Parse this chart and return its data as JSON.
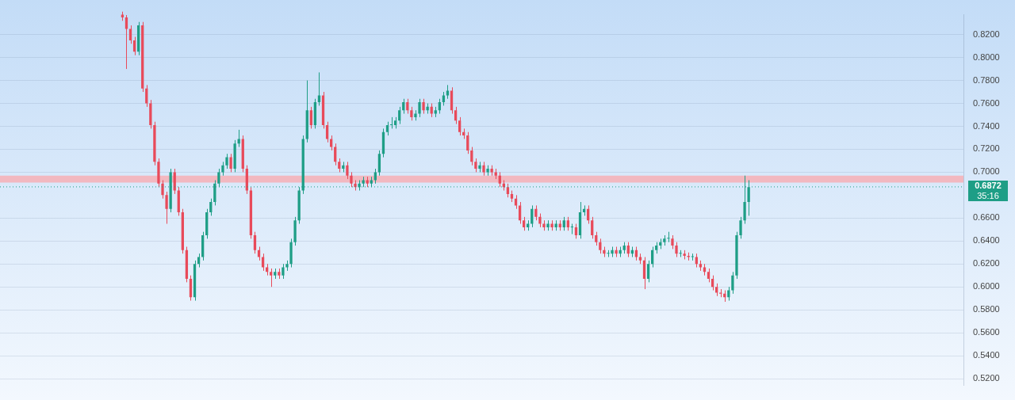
{
  "chart_data": {
    "type": "candlestick",
    "categories": [
      null,
      null,
      null,
      null,
      null,
      null,
      null,
      null,
      null,
      null,
      null,
      null,
      null,
      null,
      null,
      null,
      null,
      null,
      null,
      null,
      null,
      null,
      null,
      null,
      null,
      null,
      null,
      null,
      null,
      null,
      null,
      null,
      null,
      null,
      null,
      null,
      null,
      null,
      null,
      null,
      null,
      null,
      null,
      null,
      null,
      null,
      null,
      null,
      null,
      null,
      null,
      null,
      null,
      null,
      null,
      null,
      null,
      null,
      null,
      null,
      null,
      null,
      null,
      null,
      null,
      null,
      null,
      null,
      null,
      null,
      null,
      null,
      null,
      null,
      null,
      null,
      null,
      null,
      null,
      null,
      null,
      null,
      null,
      null,
      null,
      null,
      null,
      null,
      null,
      null,
      null,
      null,
      null,
      null,
      null,
      null,
      null,
      null,
      null,
      null,
      null,
      null,
      null,
      null,
      null,
      null,
      null,
      null,
      null,
      null,
      null,
      null,
      null,
      null,
      null,
      null,
      null,
      null,
      null,
      null,
      null,
      null,
      null,
      null,
      null,
      null,
      null,
      null,
      null,
      null,
      null,
      null,
      null,
      null,
      null,
      null,
      null,
      null,
      null,
      null,
      null,
      null,
      null,
      null,
      null,
      null,
      null,
      null,
      null,
      null,
      null,
      null,
      null,
      null,
      null,
      null,
      null,
      null,
      null,
      null,
      null,
      null,
      null,
      null,
      null,
      null,
      null,
      null,
      null,
      null,
      null,
      null,
      null,
      null,
      null,
      null,
      null,
      null,
      null,
      null,
      null,
      null,
      null,
      null,
      null,
      null,
      null,
      null,
      null,
      null,
      null,
      null,
      null,
      null,
      null,
      null,
      null,
      null,
      null,
      null,
      null,
      null,
      null,
      null,
      null,
      null,
      null,
      null,
      null,
      null,
      null,
      null,
      null,
      null,
      null,
      null,
      null,
      null,
      null,
      null,
      null,
      null,
      null,
      null,
      null,
      null,
      null,
      null,
      null,
      null,
      null,
      null,
      null,
      null,
      null,
      null,
      null,
      null,
      null,
      null
    ],
    "ohlc": [
      null,
      null,
      null,
      null,
      null,
      null,
      null,
      null,
      null,
      null,
      null,
      null,
      null,
      null,
      null,
      null,
      null,
      null,
      null,
      null,
      null,
      null,
      null,
      null,
      null,
      null,
      null,
      null,
      null,
      null,
      [
        0.838,
        0.84,
        0.832,
        0.835
      ],
      [
        0.835,
        0.837,
        0.79,
        0.825
      ],
      [
        0.825,
        0.828,
        0.812,
        0.815
      ],
      [
        0.815,
        0.818,
        0.802,
        0.805
      ],
      [
        0.805,
        0.831,
        0.802,
        0.828
      ],
      [
        0.828,
        0.831,
        0.77,
        0.773
      ],
      [
        0.773,
        0.776,
        0.757,
        0.76
      ],
      [
        0.76,
        0.763,
        0.738,
        0.741
      ],
      [
        0.741,
        0.744,
        0.706,
        0.709
      ],
      [
        0.709,
        0.712,
        0.687,
        0.69
      ],
      [
        0.69,
        0.693,
        0.677,
        0.68
      ],
      [
        0.68,
        0.683,
        0.655,
        0.668
      ],
      [
        0.668,
        0.703,
        0.665,
        0.7
      ],
      [
        0.7,
        0.703,
        0.681,
        0.684
      ],
      [
        0.684,
        0.687,
        0.662,
        0.665
      ],
      [
        0.665,
        0.668,
        0.629,
        0.632
      ],
      [
        0.632,
        0.635,
        0.604,
        0.607
      ],
      [
        0.607,
        0.61,
        0.588,
        0.591
      ],
      [
        0.591,
        0.623,
        0.588,
        0.62
      ],
      [
        0.62,
        0.629,
        0.617,
        0.626
      ],
      [
        0.626,
        0.648,
        0.623,
        0.645
      ],
      [
        0.645,
        0.668,
        0.642,
        0.665
      ],
      [
        0.665,
        0.677,
        0.662,
        0.674
      ],
      [
        0.674,
        0.693,
        0.671,
        0.69
      ],
      [
        0.69,
        0.703,
        0.687,
        0.7
      ],
      [
        0.7,
        0.709,
        0.697,
        0.706
      ],
      [
        0.706,
        0.716,
        0.703,
        0.713
      ],
      [
        0.713,
        0.716,
        0.7,
        0.703
      ],
      [
        0.703,
        0.728,
        0.7,
        0.725
      ],
      [
        0.725,
        0.737,
        0.722,
        0.729
      ],
      [
        0.729,
        0.732,
        0.7,
        0.703
      ],
      [
        0.703,
        0.706,
        0.681,
        0.684
      ],
      [
        0.684,
        0.687,
        0.642,
        0.645
      ],
      [
        0.645,
        0.648,
        0.629,
        0.632
      ],
      [
        0.632,
        0.635,
        0.623,
        0.626
      ],
      [
        0.626,
        0.629,
        0.614,
        0.617
      ],
      [
        0.617,
        0.62,
        0.61,
        0.613
      ],
      [
        0.613,
        0.616,
        0.6,
        0.61
      ],
      [
        0.61,
        0.616,
        0.607,
        0.613
      ],
      [
        0.613,
        0.616,
        0.607,
        0.61
      ],
      [
        0.61,
        0.62,
        0.607,
        0.617
      ],
      [
        0.617,
        0.623,
        0.614,
        0.62
      ],
      [
        0.62,
        0.642,
        0.617,
        0.639
      ],
      [
        0.639,
        0.661,
        0.636,
        0.658
      ],
      [
        0.658,
        0.687,
        0.655,
        0.684
      ],
      [
        0.684,
        0.732,
        0.681,
        0.729
      ],
      [
        0.729,
        0.78,
        0.726,
        0.754
      ],
      [
        0.754,
        0.757,
        0.738,
        0.741
      ],
      [
        0.741,
        0.764,
        0.738,
        0.761
      ],
      [
        0.761,
        0.787,
        0.758,
        0.767
      ],
      [
        0.767,
        0.77,
        0.738,
        0.741
      ],
      [
        0.741,
        0.744,
        0.726,
        0.729
      ],
      [
        0.729,
        0.732,
        0.719,
        0.722
      ],
      [
        0.722,
        0.725,
        0.706,
        0.709
      ],
      [
        0.709,
        0.712,
        0.7,
        0.703
      ],
      [
        0.703,
        0.709,
        0.7,
        0.706
      ],
      [
        0.706,
        0.709,
        0.694,
        0.697
      ],
      [
        0.697,
        0.7,
        0.687,
        0.69
      ],
      [
        0.69,
        0.693,
        0.684,
        0.687
      ],
      [
        0.687,
        0.693,
        0.684,
        0.69
      ],
      [
        0.69,
        0.696,
        0.687,
        0.693
      ],
      [
        0.693,
        0.696,
        0.687,
        0.69
      ],
      [
        0.69,
        0.696,
        0.687,
        0.693
      ],
      [
        0.693,
        0.703,
        0.69,
        0.7
      ],
      [
        0.7,
        0.719,
        0.697,
        0.716
      ],
      [
        0.716,
        0.738,
        0.713,
        0.735
      ],
      [
        0.735,
        0.744,
        0.732,
        0.741
      ],
      [
        0.741,
        0.748,
        0.738,
        0.741
      ],
      [
        0.741,
        0.748,
        0.738,
        0.745
      ],
      [
        0.745,
        0.757,
        0.742,
        0.754
      ],
      [
        0.754,
        0.764,
        0.751,
        0.761
      ],
      [
        0.761,
        0.764,
        0.751,
        0.754
      ],
      [
        0.754,
        0.757,
        0.745,
        0.748
      ],
      [
        0.748,
        0.754,
        0.745,
        0.751
      ],
      [
        0.751,
        0.764,
        0.748,
        0.761
      ],
      [
        0.761,
        0.764,
        0.751,
        0.754
      ],
      [
        0.754,
        0.76,
        0.751,
        0.757
      ],
      [
        0.757,
        0.76,
        0.748,
        0.751
      ],
      [
        0.751,
        0.757,
        0.748,
        0.754
      ],
      [
        0.754,
        0.764,
        0.751,
        0.761
      ],
      [
        0.761,
        0.77,
        0.758,
        0.767
      ],
      [
        0.767,
        0.776,
        0.764,
        0.771
      ],
      [
        0.771,
        0.774,
        0.751,
        0.754
      ],
      [
        0.754,
        0.757,
        0.742,
        0.745
      ],
      [
        0.745,
        0.748,
        0.732,
        0.735
      ],
      [
        0.735,
        0.738,
        0.729,
        0.732
      ],
      [
        0.732,
        0.735,
        0.716,
        0.719
      ],
      [
        0.719,
        0.722,
        0.706,
        0.709
      ],
      [
        0.709,
        0.712,
        0.7,
        0.703
      ],
      [
        0.703,
        0.709,
        0.7,
        0.706
      ],
      [
        0.706,
        0.709,
        0.697,
        0.7
      ],
      [
        0.7,
        0.706,
        0.697,
        0.703
      ],
      [
        0.703,
        0.706,
        0.697,
        0.7
      ],
      [
        0.7,
        0.703,
        0.694,
        0.697
      ],
      [
        0.697,
        0.7,
        0.687,
        0.69
      ],
      [
        0.69,
        0.693,
        0.684,
        0.687
      ],
      [
        0.687,
        0.69,
        0.678,
        0.681
      ],
      [
        0.681,
        0.684,
        0.674,
        0.677
      ],
      [
        0.677,
        0.68,
        0.668,
        0.671
      ],
      [
        0.671,
        0.674,
        0.655,
        0.658
      ],
      [
        0.658,
        0.661,
        0.649,
        0.652
      ],
      [
        0.652,
        0.658,
        0.649,
        0.655
      ],
      [
        0.655,
        0.671,
        0.652,
        0.668
      ],
      [
        0.668,
        0.671,
        0.658,
        0.661
      ],
      [
        0.661,
        0.664,
        0.652,
        0.655
      ],
      [
        0.655,
        0.658,
        0.649,
        0.652
      ],
      [
        0.652,
        0.658,
        0.649,
        0.655
      ],
      [
        0.655,
        0.658,
        0.649,
        0.652
      ],
      [
        0.652,
        0.658,
        0.649,
        0.655
      ],
      [
        0.655,
        0.658,
        0.649,
        0.652
      ],
      [
        0.652,
        0.661,
        0.649,
        0.658
      ],
      [
        0.658,
        0.661,
        0.649,
        0.652
      ],
      [
        0.652,
        0.655,
        0.646,
        0.652
      ],
      [
        0.652,
        0.655,
        0.642,
        0.645
      ],
      [
        0.645,
        0.674,
        0.642,
        0.665
      ],
      [
        0.665,
        0.671,
        0.662,
        0.668
      ],
      [
        0.668,
        0.671,
        0.655,
        0.658
      ],
      [
        0.658,
        0.661,
        0.642,
        0.645
      ],
      [
        0.645,
        0.648,
        0.636,
        0.639
      ],
      [
        0.639,
        0.642,
        0.629,
        0.632
      ],
      [
        0.632,
        0.635,
        0.626,
        0.629
      ],
      [
        0.629,
        0.632,
        0.626,
        0.629
      ],
      [
        0.629,
        0.635,
        0.626,
        0.632
      ],
      [
        0.632,
        0.635,
        0.626,
        0.629
      ],
      [
        0.629,
        0.635,
        0.626,
        0.632
      ],
      [
        0.632,
        0.639,
        0.629,
        0.636
      ],
      [
        0.636,
        0.639,
        0.626,
        0.629
      ],
      [
        0.629,
        0.635,
        0.626,
        0.632
      ],
      [
        0.632,
        0.635,
        0.623,
        0.626
      ],
      [
        0.626,
        0.629,
        0.62,
        0.623
      ],
      [
        0.623,
        0.626,
        0.598,
        0.607
      ],
      [
        0.607,
        0.623,
        0.604,
        0.62
      ],
      [
        0.62,
        0.635,
        0.617,
        0.632
      ],
      [
        0.632,
        0.639,
        0.629,
        0.636
      ],
      [
        0.636,
        0.642,
        0.633,
        0.639
      ],
      [
        0.639,
        0.645,
        0.636,
        0.642
      ],
      [
        0.642,
        0.648,
        0.639,
        0.642
      ],
      [
        0.642,
        0.645,
        0.633,
        0.636
      ],
      [
        0.636,
        0.639,
        0.626,
        0.629
      ],
      [
        0.629,
        0.632,
        0.626,
        0.629
      ],
      [
        0.629,
        0.632,
        0.624,
        0.627
      ],
      [
        0.627,
        0.63,
        0.623,
        0.626
      ],
      [
        0.626,
        0.629,
        0.623,
        0.626
      ],
      [
        0.626,
        0.629,
        0.617,
        0.62
      ],
      [
        0.62,
        0.623,
        0.614,
        0.617
      ],
      [
        0.617,
        0.62,
        0.61,
        0.613
      ],
      [
        0.613,
        0.616,
        0.604,
        0.607
      ],
      [
        0.607,
        0.61,
        0.597,
        0.6
      ],
      [
        0.6,
        0.603,
        0.592,
        0.595
      ],
      [
        0.595,
        0.598,
        0.591,
        0.594
      ],
      [
        0.594,
        0.597,
        0.587,
        0.591
      ],
      [
        0.591,
        0.6,
        0.588,
        0.597
      ],
      [
        0.597,
        0.613,
        0.594,
        0.61
      ],
      [
        0.61,
        0.648,
        0.607,
        0.645
      ],
      [
        0.645,
        0.661,
        0.642,
        0.658
      ],
      [
        0.658,
        0.697,
        0.655,
        0.674
      ],
      [
        0.674,
        0.693,
        0.662,
        0.687
      ],
      null,
      null,
      null,
      null,
      null,
      null,
      null,
      null,
      null,
      null,
      null,
      null,
      null,
      null,
      null,
      null,
      null,
      null,
      null,
      null,
      null,
      null,
      null,
      null,
      null,
      null,
      null,
      null,
      null,
      null,
      null,
      null,
      null,
      null,
      null,
      null,
      null,
      null,
      null,
      null,
      null,
      null,
      null,
      null,
      null,
      null,
      null,
      null,
      null,
      null,
      null,
      null,
      null
    ],
    "ylim": [
      0.5142,
      0.8373
    ],
    "yticks": [
      {
        "value": 0.52,
        "label": "0.5200"
      },
      {
        "value": 0.54,
        "label": "0.5400"
      },
      {
        "value": 0.56,
        "label": "0.5600"
      },
      {
        "value": 0.58,
        "label": "0.5800"
      },
      {
        "value": 0.6,
        "label": "0.6000"
      },
      {
        "value": 0.62,
        "label": "0.6200"
      },
      {
        "value": 0.64,
        "label": "0.6400"
      },
      {
        "value": 0.66,
        "label": "0.6600"
      },
      {
        "value": 0.7,
        "label": "0.7000"
      },
      {
        "value": 0.72,
        "label": "0.7200"
      },
      {
        "value": 0.74,
        "label": "0.7400"
      },
      {
        "value": 0.76,
        "label": "0.7600"
      },
      {
        "value": 0.78,
        "label": "0.7800"
      },
      {
        "value": 0.8,
        "label": "0.8000"
      },
      {
        "value": 0.82,
        "label": "0.8200"
      }
    ],
    "grid": "y",
    "ref_lines": [
      {
        "axis": "y",
        "value": 0.6872,
        "label": "0.6872",
        "color": "#1e9e86",
        "line_style": "dotted"
      }
    ],
    "bands": [
      {
        "axis": "y",
        "from": 0.691,
        "to": 0.697,
        "color": "#f2b8c0"
      }
    ],
    "annotations": [
      "35:16"
    ]
  }
}
